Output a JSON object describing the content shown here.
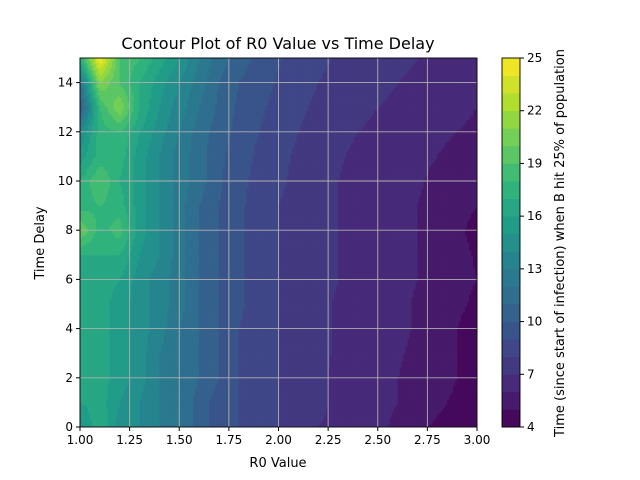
{
  "chart_data": {
    "type": "heatmap",
    "title": "Contour Plot of R0 Value vs Time Delay",
    "xlabel": "R0 Value",
    "ylabel": "Time Delay",
    "xlim": [
      1.0,
      3.0
    ],
    "ylim": [
      0,
      15
    ],
    "grid": true,
    "colormap": "viridis",
    "x_ticks": [
      "1.00",
      "1.25",
      "1.50",
      "1.75",
      "2.00",
      "2.25",
      "2.50",
      "2.75",
      "3.00"
    ],
    "y_ticks": [
      "0",
      "2",
      "4",
      "6",
      "8",
      "10",
      "12",
      "14"
    ],
    "x": [
      1.0,
      1.1,
      1.2,
      1.3,
      1.4,
      1.5,
      1.6,
      1.7,
      1.8,
      1.9,
      2.0,
      2.1,
      2.2,
      2.3,
      2.4,
      2.5,
      2.6,
      2.7,
      2.8,
      2.9,
      3.0
    ],
    "y": [
      0,
      1,
      2,
      3,
      4,
      5,
      6,
      7,
      8,
      9,
      10,
      11,
      12,
      13,
      14,
      15
    ],
    "z": [
      [
        14.5,
        17.0,
        14.5,
        14.0,
        13.0,
        12.0,
        10.5,
        9.5,
        9.0,
        8.5,
        8.0,
        7.5,
        7.0,
        6.8,
        6.5,
        6.2,
        5.8,
        5.3,
        4.8,
        4.5,
        4.3
      ],
      [
        16.0,
        16.5,
        15.0,
        14.0,
        13.0,
        12.0,
        10.5,
        9.5,
        9.0,
        8.5,
        8.0,
        7.5,
        7.2,
        6.8,
        6.5,
        6.3,
        6.0,
        5.7,
        5.2,
        4.8,
        4.5
      ],
      [
        17.0,
        16.5,
        15.5,
        14.5,
        13.0,
        12.0,
        11.0,
        10.0,
        9.0,
        8.5,
        8.0,
        7.5,
        7.2,
        6.8,
        6.5,
        6.3,
        6.0,
        5.8,
        5.5,
        5.0,
        4.7
      ],
      [
        16.0,
        16.5,
        15.5,
        14.5,
        13.0,
        12.0,
        11.0,
        10.0,
        9.0,
        8.5,
        8.0,
        7.6,
        7.2,
        6.9,
        6.6,
        6.4,
        6.1,
        5.8,
        5.5,
        5.0,
        4.6
      ],
      [
        17.0,
        16.5,
        15.5,
        14.5,
        13.5,
        12.0,
        11.0,
        10.0,
        9.0,
        8.5,
        8.0,
        7.6,
        7.2,
        6.9,
        6.6,
        6.4,
        6.2,
        5.9,
        5.5,
        5.0,
        4.5
      ],
      [
        16.5,
        16.5,
        15.5,
        14.5,
        13.5,
        12.5,
        11.0,
        10.0,
        9.2,
        8.5,
        8.0,
        7.6,
        7.2,
        6.9,
        6.6,
        6.4,
        6.2,
        5.9,
        5.6,
        5.2,
        4.8
      ],
      [
        16.5,
        16.5,
        16.0,
        14.5,
        13.5,
        12.5,
        11.0,
        10.0,
        9.2,
        8.6,
        8.0,
        7.6,
        7.3,
        7.0,
        6.7,
        6.4,
        6.2,
        6.0,
        5.7,
        5.3,
        5.0
      ],
      [
        17.0,
        17.0,
        17.0,
        15.0,
        14.0,
        12.5,
        11.0,
        10.0,
        9.2,
        8.6,
        8.0,
        7.6,
        7.3,
        7.0,
        6.7,
        6.4,
        6.2,
        6.0,
        5.7,
        5.3,
        4.9
      ],
      [
        20.0,
        17.5,
        18.5,
        15.5,
        14.0,
        12.5,
        11.0,
        10.0,
        9.2,
        8.6,
        8.0,
        7.6,
        7.3,
        7.0,
        6.7,
        6.4,
        6.2,
        6.0,
        5.7,
        5.2,
        4.7
      ],
      [
        17.5,
        18.0,
        17.5,
        15.5,
        14.0,
        12.5,
        11.0,
        10.0,
        9.2,
        8.6,
        8.0,
        7.6,
        7.3,
        7.0,
        6.7,
        6.4,
        6.2,
        6.0,
        5.7,
        5.3,
        5.0
      ],
      [
        17.0,
        19.0,
        17.0,
        15.5,
        14.0,
        12.5,
        11.5,
        10.2,
        9.3,
        8.7,
        8.2,
        7.7,
        7.4,
        7.0,
        6.8,
        6.5,
        6.3,
        6.1,
        5.8,
        5.5,
        5.2
      ],
      [
        15.5,
        17.5,
        17.5,
        15.5,
        14.0,
        12.5,
        11.5,
        10.2,
        9.5,
        8.8,
        8.3,
        7.8,
        7.4,
        7.1,
        6.8,
        6.6,
        6.4,
        6.2,
        6.0,
        5.7,
        5.4
      ],
      [
        14.0,
        17.5,
        18.0,
        16.0,
        14.5,
        13.0,
        11.5,
        10.5,
        9.7,
        9.0,
        8.5,
        8.0,
        7.6,
        7.3,
        7.0,
        6.8,
        6.6,
        6.4,
        6.2,
        6.0,
        5.8
      ],
      [
        10.0,
        18.0,
        21.0,
        17.0,
        15.0,
        13.5,
        12.0,
        10.8,
        9.8,
        9.2,
        8.7,
        8.2,
        7.8,
        7.5,
        7.2,
        7.0,
        6.8,
        6.6,
        6.4,
        6.2,
        6.0
      ],
      [
        12.0,
        21.0,
        19.0,
        17.0,
        15.5,
        14.0,
        12.5,
        11.0,
        10.0,
        9.4,
        8.9,
        8.4,
        8.0,
        7.7,
        7.4,
        7.2,
        7.0,
        6.8,
        6.6,
        6.4,
        6.2
      ],
      [
        17.0,
        25.0,
        19.0,
        18.0,
        16.5,
        15.0,
        13.0,
        11.5,
        10.5,
        9.7,
        9.1,
        8.6,
        8.2,
        7.9,
        7.6,
        7.4,
        7.2,
        7.0,
        6.8,
        6.6,
        6.4
      ]
    ],
    "levels_min": 4,
    "levels_max": 25,
    "level_step": 1,
    "colorbar": {
      "label": "Time (since start of infection) when B hit 25% of population",
      "ticks": [
        "4",
        "7",
        "10",
        "13",
        "16",
        "19",
        "22",
        "25"
      ]
    }
  }
}
